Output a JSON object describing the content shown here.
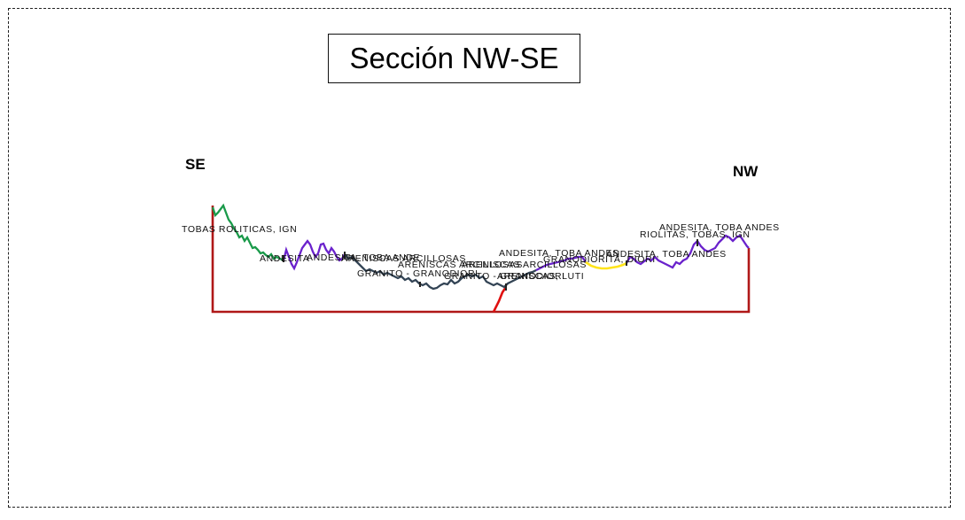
{
  "title": "Sección NW-SE",
  "directions": {
    "left": "SE",
    "right": "NW"
  },
  "colors": {
    "frame": "#222222",
    "base": "#b01818",
    "fault": "#e01010",
    "tobas_riolitas": "#1a9a4a",
    "andesita": "#6a22cc",
    "areniscas": "#334455",
    "granodiorita": "#ffe41a",
    "dark": "#222222"
  },
  "labels": [
    "TOBAS ROLITICAS, IGN",
    "ANDESITA",
    "ANDESITA, TOBA ANDE",
    "ARENISCAS ARCILLOSAS",
    "ARENISCAS ARCILLOSAS",
    "GRANITO - GRANODIORI",
    "ARENISCAS ARCILLOSAS",
    "GRANITO - GRANODIORI",
    "ARENISCAS, LUTI",
    "ANDESITA, TOBA ANDES",
    "GRANODIORITA, DIORI",
    "ANDESITA, TOBA ANDES",
    "RIOLITAS, TOBAS, IGN",
    "ANDESITA, TOBA ANDES"
  ]
}
